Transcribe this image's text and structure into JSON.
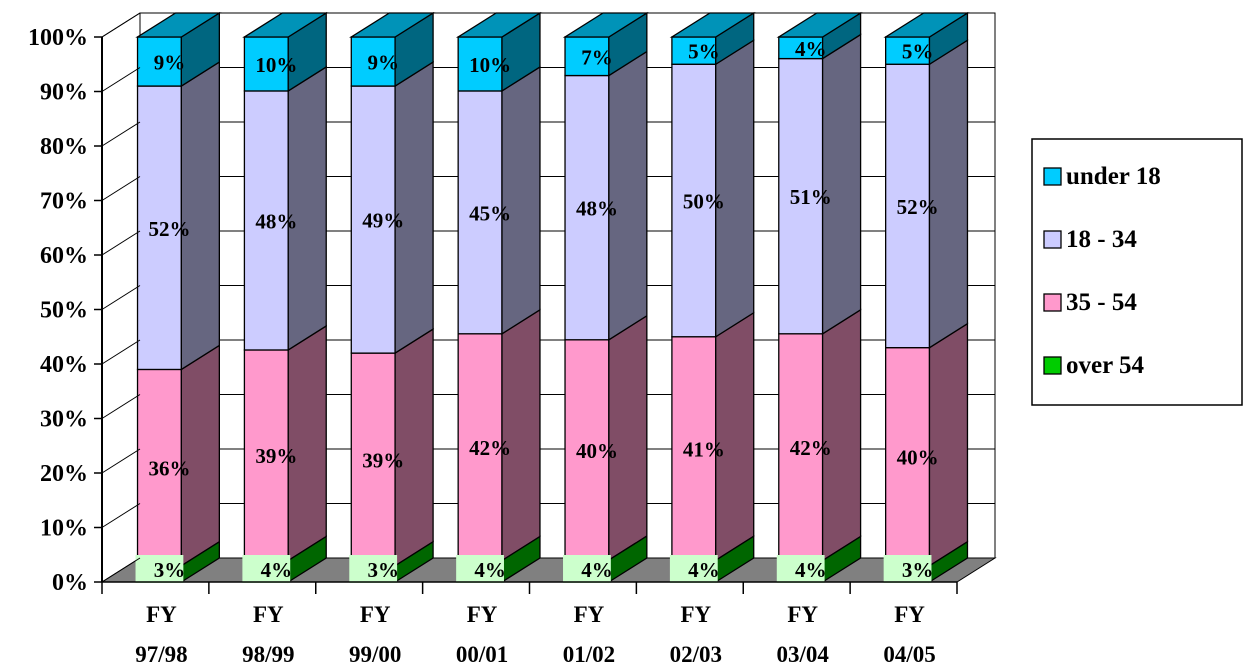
{
  "chart_data": {
    "type": "bar",
    "stacked": true,
    "percent_stacked": true,
    "three_d": true,
    "categories": [
      "FY 97/98",
      "FY 98/99",
      "FY 99/00",
      "FY 00/01",
      "FY 01/02",
      "FY 02/03",
      "FY 03/04",
      "FY 04/05"
    ],
    "series": [
      {
        "name": "over 54",
        "color": "#00cc00",
        "values": [
          3,
          4,
          3,
          4,
          4,
          4,
          4,
          3
        ],
        "labels": [
          "3%",
          "4%",
          "3%",
          "4%",
          "4%",
          "4%",
          "4%",
          "3%"
        ]
      },
      {
        "name": "35 - 54",
        "color": "#ff99cc",
        "values": [
          36,
          39,
          39,
          42,
          40,
          41,
          42,
          40
        ],
        "labels": [
          "36%",
          "39%",
          "39%",
          "42%",
          "40%",
          "41%",
          "42%",
          "40%"
        ]
      },
      {
        "name": "18 - 34",
        "color": "#ccccff",
        "values": [
          52,
          48,
          49,
          45,
          48,
          50,
          51,
          52
        ],
        "labels": [
          "52%",
          "48%",
          "49%",
          "45%",
          "48%",
          "50%",
          "51%",
          "52%"
        ]
      },
      {
        "name": "under 18",
        "color": "#00ccff",
        "values": [
          9,
          10,
          9,
          10,
          7,
          5,
          4,
          5
        ],
        "labels": [
          "9%",
          "10%",
          "9%",
          "10%",
          "7%",
          "5%",
          "4%",
          "5%"
        ]
      }
    ],
    "y_ticks": [
      "0%",
      "10%",
      "20%",
      "30%",
      "40%",
      "50%",
      "60%",
      "70%",
      "80%",
      "90%",
      "100%"
    ],
    "ylim": [
      0,
      100
    ],
    "grid": true,
    "legend_position": "right",
    "legend_order": [
      "under 18",
      "18 - 34",
      "35 - 54",
      "over 54"
    ],
    "title": "",
    "xlabel": "",
    "ylabel": ""
  }
}
